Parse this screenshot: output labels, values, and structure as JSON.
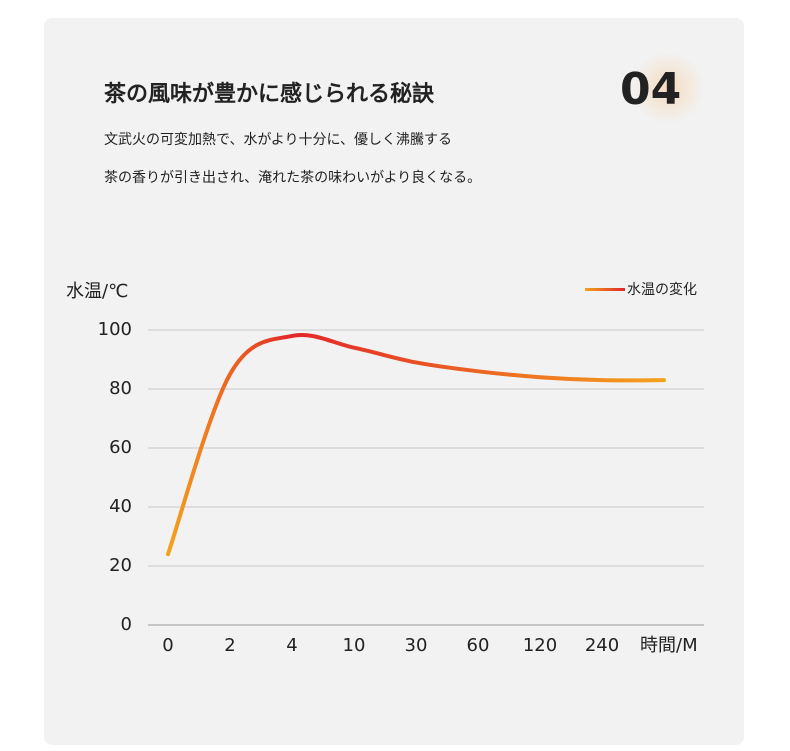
{
  "header": {
    "title": "茶の風味が豊かに感じられる秘訣",
    "number": "04",
    "lines": [
      "文武火の可変加熱で、水がより十分に、優しく沸騰する",
      "茶の香りが引き出され、淹れた茶の味わいがより良くなる。"
    ]
  },
  "chart_data": {
    "type": "line",
    "ylabel": "水温/℃",
    "xlabel": "時間/M",
    "categories": [
      "0",
      "2",
      "4",
      "10",
      "30",
      "60",
      "120",
      "240",
      null
    ],
    "series": [
      {
        "name": "水温の変化",
        "colors": [
          "#f4a21c",
          "#e3262a"
        ],
        "values": [
          24,
          85,
          98,
          94,
          89,
          86,
          84,
          83,
          83
        ]
      }
    ],
    "ylim": [
      0,
      100
    ],
    "yticks": [
      0,
      20,
      40,
      60,
      80,
      100
    ],
    "grid": true,
    "legend": "top-right"
  }
}
